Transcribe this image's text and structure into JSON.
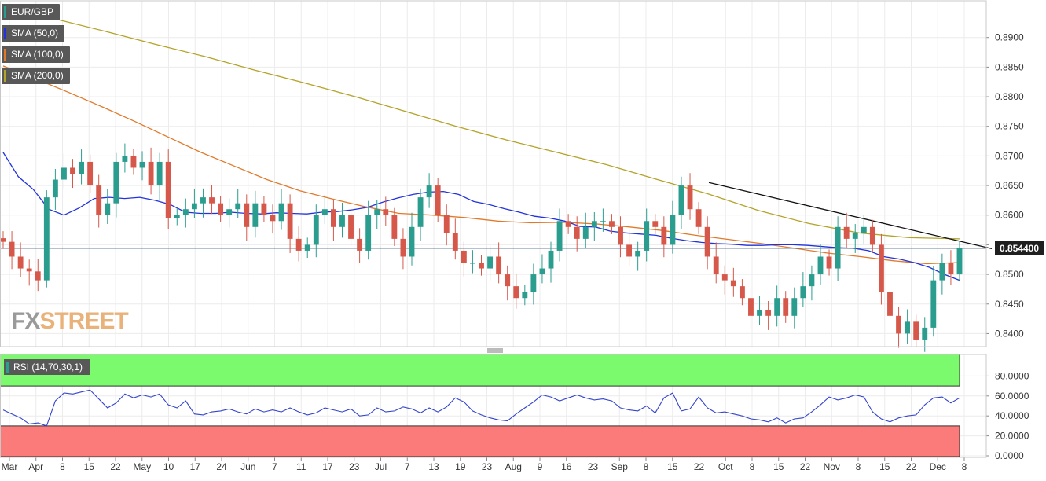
{
  "colors": {
    "bull": "#2a9d8f",
    "bear": "#d6584a",
    "sma50": "#2233dd",
    "sma100": "#e07a2b",
    "sma200": "#b3a328",
    "trendline": "#111111",
    "rsi_line": "#3344cc",
    "overbought_zone": "#7cfa6e",
    "oversold_zone": "#fb7a7a"
  },
  "legend": {
    "symbol": "EUR/GBP",
    "sma50": "SMA (50,0)",
    "sma100": "SMA (100,0)",
    "sma200": "SMA (200,0)",
    "rsi": "RSI (14,70,30,1)",
    "watermark_fx": "FX",
    "watermark_street": "STREET"
  },
  "price_tag": "0.854400",
  "chart_data": [
    {
      "type": "candlestick",
      "symbol": "EUR/GBP",
      "x_tick_labels": [
        "Mar",
        "Apr",
        "8",
        "15",
        "22",
        "May",
        "10",
        "17",
        "24",
        "Jun",
        "7",
        "11",
        "17",
        "23",
        "Jul",
        "7",
        "13",
        "19",
        "23",
        "Aug",
        "9",
        "16",
        "23",
        "Sep",
        "8",
        "15",
        "22",
        "Oct",
        "8",
        "15",
        "22",
        "Nov",
        "8",
        "15",
        "22",
        "Dec",
        "8"
      ],
      "y_tick_labels": [
        "0.8400",
        "0.8450",
        "0.8500",
        "0.8550",
        "0.8600",
        "0.8650",
        "0.8700",
        "0.8750",
        "0.8800",
        "0.8850",
        "0.8900"
      ],
      "ylim": [
        0.8378,
        0.8962
      ],
      "last_price": 0.8544,
      "closes": [
        0.8555,
        0.853,
        0.851,
        0.8505,
        0.849,
        0.863,
        0.866,
        0.868,
        0.867,
        0.869,
        0.865,
        0.86,
        0.862,
        0.869,
        0.87,
        0.868,
        0.869,
        0.865,
        0.869,
        0.8595,
        0.86,
        0.861,
        0.862,
        0.863,
        0.862,
        0.86,
        0.861,
        0.862,
        0.858,
        0.862,
        0.86,
        0.859,
        0.862,
        0.856,
        0.854,
        0.855,
        0.86,
        0.861,
        0.858,
        0.86,
        0.856,
        0.854,
        0.86,
        0.861,
        0.86,
        0.856,
        0.853,
        0.858,
        0.863,
        0.865,
        0.86,
        0.857,
        0.854,
        0.852,
        0.852,
        0.851,
        0.853,
        0.85,
        0.848,
        0.846,
        0.847,
        0.85,
        0.851,
        0.854,
        0.859,
        0.858,
        0.856,
        0.858,
        0.859,
        0.859,
        0.858,
        0.855,
        0.853,
        0.854,
        0.859,
        0.858,
        0.855,
        0.86,
        0.865,
        0.861,
        0.858,
        0.853,
        0.85,
        0.849,
        0.848,
        0.846,
        0.843,
        0.844,
        0.843,
        0.846,
        0.843,
        0.846,
        0.848,
        0.85,
        0.853,
        0.851,
        0.858,
        0.856,
        0.857,
        0.858,
        0.855,
        0.847,
        0.843,
        0.84,
        0.842,
        0.839,
        0.841,
        0.849,
        0.852,
        0.85,
        0.8544
      ],
      "sma50": [
        0.8706,
        0.8665,
        0.8643,
        0.861,
        0.86,
        0.8612,
        0.8628,
        0.863,
        0.8628,
        0.863,
        0.8625,
        0.8618,
        0.8605,
        0.8603,
        0.8603,
        0.8605,
        0.8603,
        0.8602,
        0.8604,
        0.8603,
        0.8602,
        0.8605,
        0.8606,
        0.8609,
        0.8613,
        0.8622,
        0.8629,
        0.8635,
        0.8639,
        0.864,
        0.8635,
        0.8623,
        0.8618,
        0.8611,
        0.8605,
        0.8598,
        0.8595,
        0.859,
        0.8581,
        0.858,
        0.8573,
        0.857,
        0.8568,
        0.8566,
        0.8561,
        0.8557,
        0.8554,
        0.8552,
        0.8551,
        0.8549,
        0.8549,
        0.855,
        0.855,
        0.8549,
        0.8547,
        0.8545,
        0.8544,
        0.854,
        0.853,
        0.8526,
        0.852,
        0.8512,
        0.85,
        0.849
      ],
      "sma100": [
        0.8852,
        0.883,
        0.8807,
        0.8783,
        0.8758,
        0.8732,
        0.8706,
        0.8683,
        0.866,
        0.8641,
        0.8627,
        0.8614,
        0.8603,
        0.86,
        0.8596,
        0.859,
        0.8587,
        0.8588,
        0.8585,
        0.858,
        0.8574,
        0.8566,
        0.8559,
        0.8552,
        0.8544,
        0.8536,
        0.853,
        0.8523,
        0.8518,
        0.852
      ],
      "sma200": [
        0.8952,
        0.8932,
        0.8911,
        0.8889,
        0.8868,
        0.8845,
        0.8823,
        0.88,
        0.8775,
        0.875,
        0.8727,
        0.8706,
        0.8685,
        0.866,
        0.8636,
        0.8608,
        0.8586,
        0.857,
        0.8562,
        0.856
      ],
      "trendline": [
        [
          0.8655
        ],
        [
          0.855
        ]
      ]
    },
    {
      "type": "line",
      "name": "RSI (14,70,30,1)",
      "y_tick_labels": [
        "0.0000",
        "20.0000",
        "40.0000",
        "60.0000",
        "80.0000"
      ],
      "ylim": [
        0,
        100
      ],
      "overbought": 70,
      "oversold": 30,
      "values": [
        46,
        42,
        38,
        32,
        33,
        30,
        55,
        63,
        62,
        64,
        66,
        57,
        48,
        53,
        62,
        58,
        61,
        59,
        62,
        51,
        48,
        55,
        42,
        41,
        44,
        45,
        47,
        44,
        42,
        47,
        44,
        46,
        44,
        48,
        44,
        41,
        43,
        48,
        46,
        44,
        47,
        40,
        41,
        48,
        44,
        45,
        49,
        47,
        43,
        48,
        44,
        49,
        58,
        54,
        45,
        41,
        38,
        36,
        35,
        42,
        48,
        54,
        61,
        59,
        55,
        58,
        61,
        58,
        56,
        57,
        55,
        48,
        46,
        45,
        50,
        43,
        58,
        63,
        45,
        47,
        59,
        48,
        43,
        44,
        42,
        40,
        37,
        36,
        34,
        38,
        33,
        37,
        38,
        44,
        51,
        59,
        56,
        58,
        61,
        59,
        44,
        37,
        34,
        38,
        40,
        41,
        51,
        58,
        59,
        53,
        58
      ]
    }
  ]
}
